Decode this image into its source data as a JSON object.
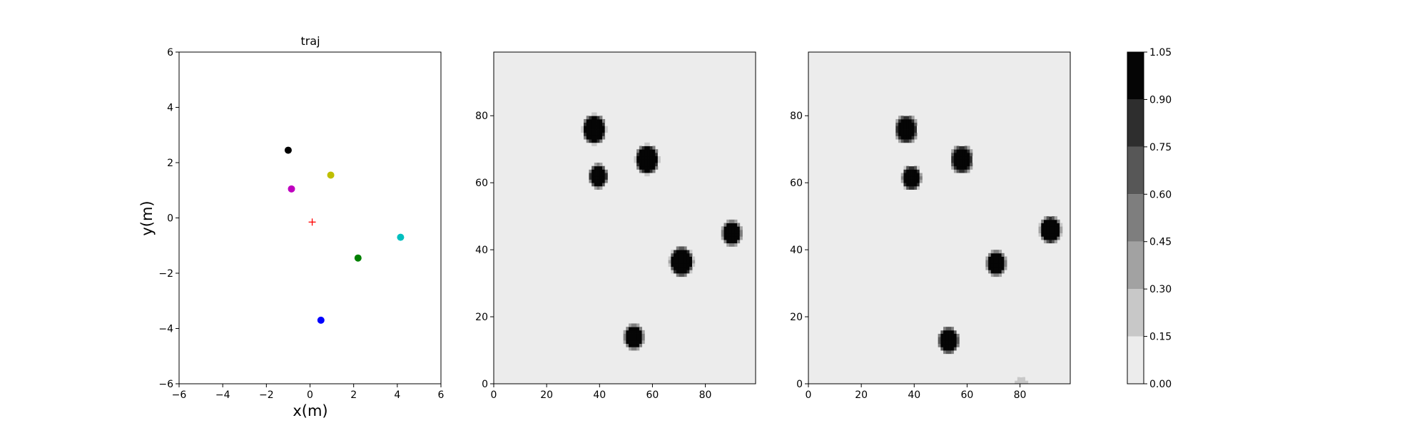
{
  "chart_data": [
    {
      "type": "scatter",
      "title": "traj",
      "xlabel": "x(m)",
      "ylabel": "y(m)",
      "xlim": [
        -6,
        6
      ],
      "ylim": [
        -6,
        6
      ],
      "xticks": [
        -6,
        -4,
        -2,
        0,
        2,
        4,
        6
      ],
      "yticks": [
        -6,
        -4,
        -2,
        0,
        2,
        4,
        6
      ],
      "grid": false,
      "points": [
        {
          "x": -1.0,
          "y": 2.45,
          "color": "#000000",
          "marker": "circle"
        },
        {
          "x": 0.95,
          "y": 1.55,
          "color": "#bfbf00",
          "marker": "circle"
        },
        {
          "x": -0.85,
          "y": 1.05,
          "color": "#bf00bf",
          "marker": "circle"
        },
        {
          "x": 0.1,
          "y": -0.15,
          "color": "#ff0000",
          "marker": "plus"
        },
        {
          "x": 4.15,
          "y": -0.7,
          "color": "#00bfbf",
          "marker": "circle"
        },
        {
          "x": 2.2,
          "y": -1.45,
          "color": "#008000",
          "marker": "circle"
        },
        {
          "x": 0.5,
          "y": -3.7,
          "color": "#0000ff",
          "marker": "circle"
        }
      ]
    },
    {
      "type": "heatmap",
      "xlim": [
        0,
        99
      ],
      "ylim": [
        0,
        99
      ],
      "xticks": [
        0,
        20,
        40,
        60,
        80
      ],
      "yticks": [
        0,
        20,
        40,
        60,
        80
      ],
      "background_value": 0.07,
      "blobs": [
        {
          "x": 38,
          "y": 76,
          "r": 3.6,
          "value": 1.0
        },
        {
          "x": 58,
          "y": 67,
          "r": 3.6,
          "value": 1.0
        },
        {
          "x": 39.5,
          "y": 62,
          "r": 2.8,
          "value": 1.0
        },
        {
          "x": 71,
          "y": 36.5,
          "r": 3.6,
          "value": 1.0
        },
        {
          "x": 90,
          "y": 45,
          "r": 3.0,
          "value": 1.0
        },
        {
          "x": 53,
          "y": 14,
          "r": 3.0,
          "value": 1.0
        }
      ]
    },
    {
      "type": "heatmap",
      "xlim": [
        0,
        99
      ],
      "ylim": [
        0,
        99
      ],
      "xticks": [
        0,
        20,
        40,
        60,
        80
      ],
      "yticks": [
        0,
        20,
        40,
        60,
        80
      ],
      "background_value": 0.07,
      "blobs": [
        {
          "x": 37,
          "y": 76,
          "r": 3.4,
          "value": 1.0
        },
        {
          "x": 58,
          "y": 67,
          "r": 3.4,
          "value": 1.0
        },
        {
          "x": 39,
          "y": 61.5,
          "r": 2.9,
          "value": 1.0
        },
        {
          "x": 71,
          "y": 36,
          "r": 3.0,
          "value": 0.95
        },
        {
          "x": 91.5,
          "y": 46,
          "r": 3.3,
          "value": 1.0
        },
        {
          "x": 53,
          "y": 13,
          "r": 3.2,
          "value": 1.0
        },
        {
          "x": 80.5,
          "y": -0.5,
          "r": 1.8,
          "value": 0.25
        }
      ]
    }
  ],
  "colorbar": {
    "ticks": [
      "0.00",
      "0.15",
      "0.30",
      "0.45",
      "0.60",
      "0.75",
      "0.90",
      "1.05"
    ],
    "levels": [
      0.0,
      0.15,
      0.3,
      0.45,
      0.6,
      0.75,
      0.9,
      1.05
    ],
    "colors": [
      "#ececec",
      "#c8c8c8",
      "#a2a2a2",
      "#7e7e7e",
      "#575757",
      "#2e2e2e",
      "#050505"
    ]
  }
}
